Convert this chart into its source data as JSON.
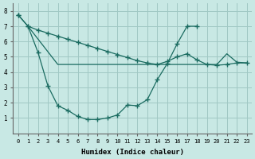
{
  "xlabel": "Humidex (Indice chaleur)",
  "bg_color": "#c8e8e4",
  "grid_color": "#a0c8c4",
  "line_color": "#1a6b60",
  "xlim": [
    -0.5,
    23.5
  ],
  "ylim": [
    0,
    8.5
  ],
  "xticks": [
    0,
    1,
    2,
    3,
    4,
    5,
    6,
    7,
    8,
    9,
    10,
    11,
    12,
    13,
    14,
    15,
    16,
    17,
    18,
    19,
    20,
    21,
    22,
    23
  ],
  "yticks": [
    1,
    2,
    3,
    4,
    5,
    6,
    7,
    8
  ],
  "line_diag_x": [
    0,
    1,
    2,
    3,
    4,
    5,
    6,
    7,
    8,
    9,
    10,
    11,
    12,
    13,
    14,
    15,
    16,
    17,
    18,
    19,
    20,
    21,
    22,
    23
  ],
  "line_diag_y": [
    7.75,
    7.0,
    6.75,
    6.55,
    6.35,
    6.15,
    5.95,
    5.75,
    5.55,
    5.35,
    5.15,
    4.95,
    4.75,
    4.6,
    4.5,
    4.7,
    5.0,
    5.2,
    4.8,
    4.5,
    4.45,
    4.5,
    4.6,
    4.6
  ],
  "line_vcurve_x": [
    0,
    1,
    2,
    3,
    4,
    5,
    6,
    7,
    8,
    9,
    10,
    11,
    12,
    13,
    14,
    15,
    16,
    17,
    18
  ],
  "line_vcurve_y": [
    7.75,
    7.0,
    5.3,
    3.1,
    1.8,
    1.5,
    1.1,
    0.9,
    0.9,
    1.0,
    1.2,
    1.85,
    1.8,
    2.2,
    3.5,
    4.55,
    5.85,
    7.0,
    7.0
  ],
  "line_flat_x": [
    1,
    4,
    5,
    14,
    15,
    19,
    20,
    21,
    22,
    23
  ],
  "line_flat_y": [
    7.0,
    4.5,
    4.5,
    4.5,
    4.5,
    4.5,
    4.5,
    5.2,
    4.65,
    4.6
  ]
}
